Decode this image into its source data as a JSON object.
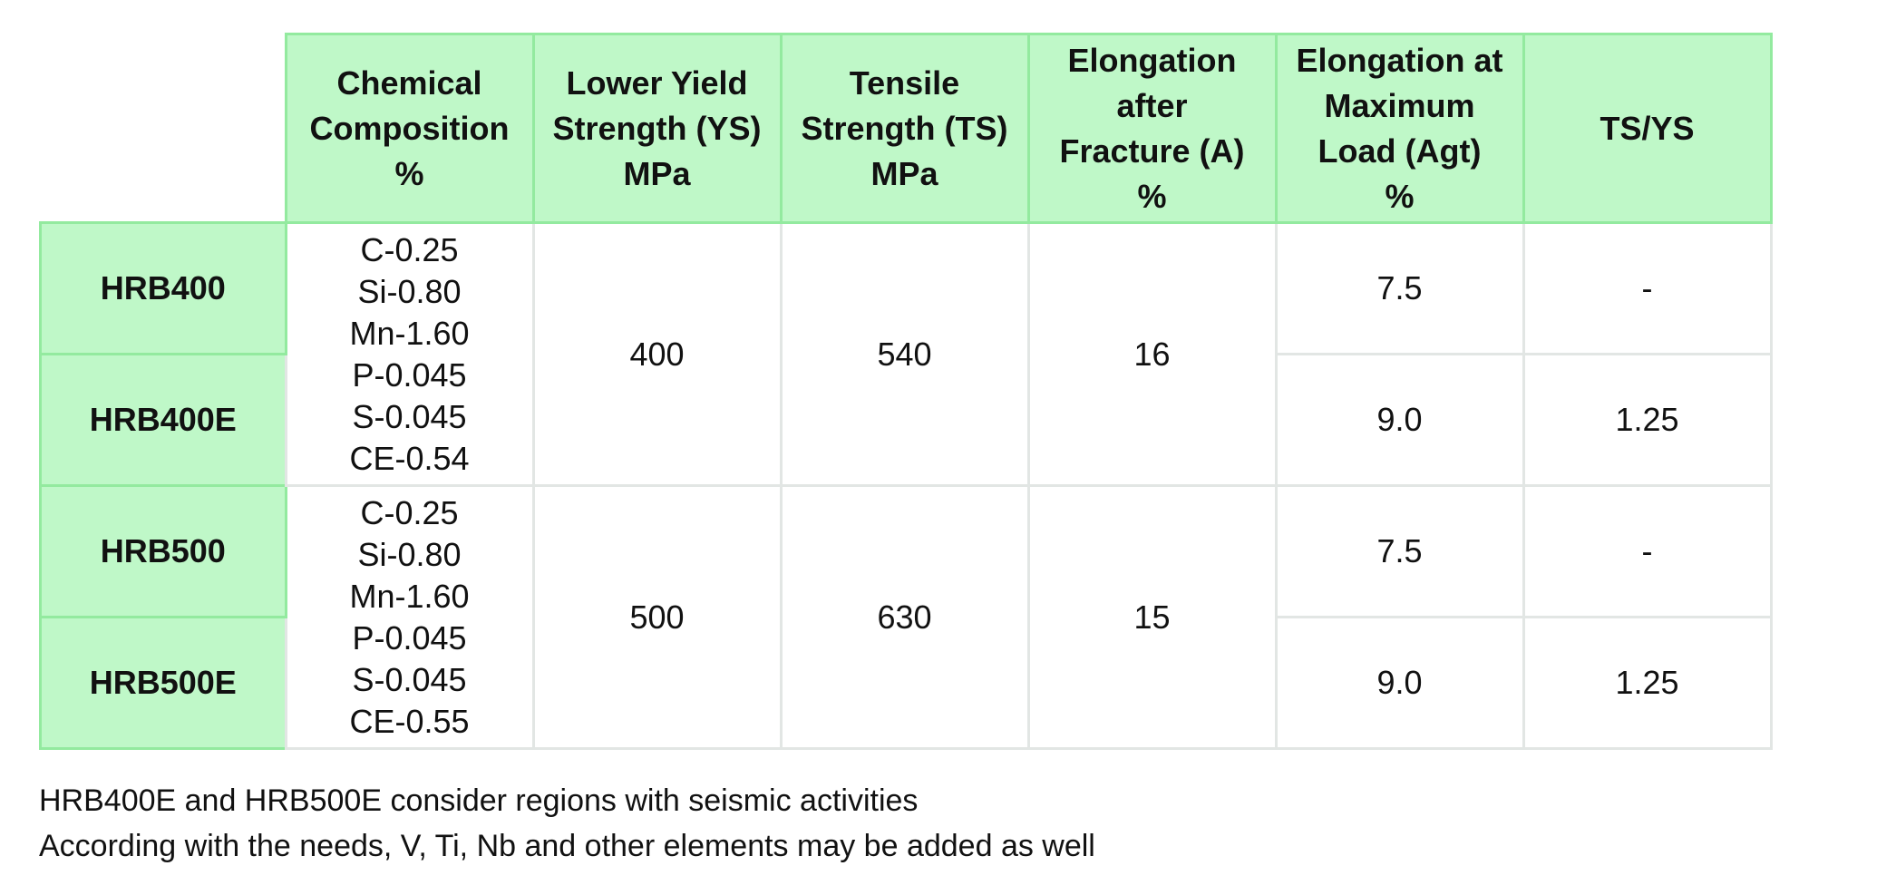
{
  "table": {
    "header": [
      {
        "lines": [
          "Chemical",
          "Composition",
          "%"
        ]
      },
      {
        "lines": [
          "Lower Yield",
          "Strength (YS)",
          "MPa"
        ]
      },
      {
        "lines": [
          "Tensile",
          "Strength (TS)",
          "MPa"
        ]
      },
      {
        "lines": [
          "Elongation",
          "after",
          "Fracture (A)",
          "%"
        ]
      },
      {
        "lines": [
          "Elongation at",
          "Maximum",
          "Load (Agt)",
          "%"
        ]
      },
      {
        "lines": [
          "TS/YS"
        ]
      }
    ],
    "groups": [
      {
        "composition": [
          "C-0.25",
          "Si-0.80",
          "Mn-1.60",
          "P-0.045",
          "S-0.045",
          "CE-0.54"
        ],
        "yield": "400",
        "tensile": "540",
        "elongation": "16",
        "grades": [
          {
            "name": "HRB400",
            "agt": "7.5",
            "ts_ys": "-"
          },
          {
            "name": "HRB400E",
            "agt": "9.0",
            "ts_ys": "1.25"
          }
        ]
      },
      {
        "composition": [
          "C-0.25",
          "Si-0.80",
          "Mn-1.60",
          "P-0.045",
          "S-0.045",
          "CE-0.55"
        ],
        "yield": "500",
        "tensile": "630",
        "elongation": "15",
        "grades": [
          {
            "name": "HRB500",
            "agt": "7.5",
            "ts_ys": "-"
          },
          {
            "name": "HRB500E",
            "agt": "9.0",
            "ts_ys": "1.25"
          }
        ]
      }
    ]
  },
  "notes": [
    "HRB400E and HRB500E consider regions with seismic activities",
    "According with the needs, V, Ti, Nb and other elements may be added as well"
  ]
}
